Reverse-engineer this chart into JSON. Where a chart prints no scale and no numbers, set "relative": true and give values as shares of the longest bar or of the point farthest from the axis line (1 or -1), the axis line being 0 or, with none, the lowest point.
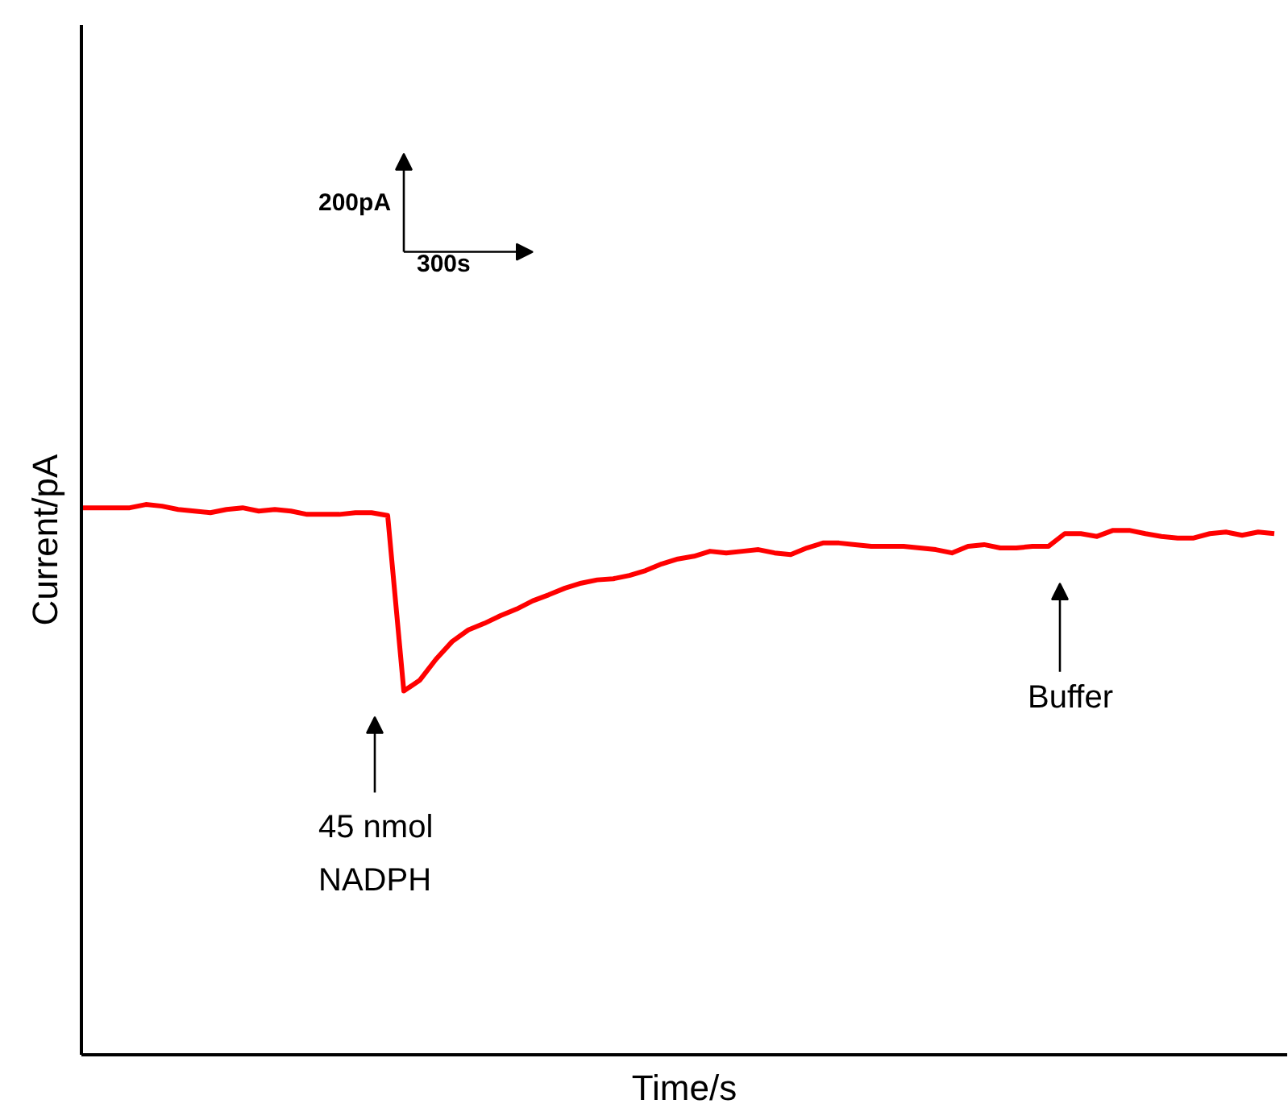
{
  "chart_data": {
    "type": "line",
    "relative": true,
    "xlabel": "Time/s",
    "ylabel": "Current/pA",
    "categories": [
      null,
      null,
      null,
      null,
      null,
      null,
      null,
      null,
      null,
      null,
      null,
      null,
      null,
      null,
      null,
      null,
      null,
      null,
      null,
      null,
      null,
      null,
      null,
      null,
      null,
      null,
      null,
      null,
      null,
      null,
      null,
      null,
      null,
      null,
      null,
      null,
      null,
      null,
      null,
      null,
      null,
      null,
      null,
      null,
      null,
      null,
      null,
      null,
      null,
      null,
      null,
      null,
      null,
      null,
      null,
      null,
      null,
      null,
      null,
      null,
      null,
      null,
      null,
      null,
      null,
      null,
      null,
      null,
      null,
      null,
      null,
      null,
      null,
      null,
      null
    ],
    "series": [
      {
        "color": "#ff0000",
        "values": [
          0.994,
          0.994,
          0.994,
          0.994,
          1.0,
          0.997,
          0.991,
          0.988,
          0.985,
          0.991,
          0.994,
          0.988,
          0.991,
          0.988,
          0.982,
          0.982,
          0.982,
          0.985,
          0.985,
          0.98,
          0.661,
          0.681,
          0.719,
          0.751,
          0.772,
          0.784,
          0.798,
          0.81,
          0.825,
          0.836,
          0.848,
          0.857,
          0.863,
          0.865,
          0.871,
          0.88,
          0.892,
          0.901,
          0.906,
          0.915,
          0.912,
          0.915,
          0.918,
          0.912,
          0.909,
          0.921,
          0.93,
          0.93,
          0.927,
          0.924,
          0.924,
          0.924,
          0.921,
          0.918,
          0.912,
          0.924,
          0.927,
          0.921,
          0.921,
          0.924,
          0.924,
          0.947,
          0.947,
          0.942,
          0.953,
          0.953,
          0.947,
          0.942,
          0.939,
          0.939,
          0.947,
          0.95,
          0.944,
          0.95,
          0.947
        ]
      }
    ],
    "annotations": [
      "200pA",
      "300s",
      "45 nmol\nNADPH",
      "Buffer"
    ],
    "grid": false,
    "marker": "none",
    "line_style": "solid"
  }
}
